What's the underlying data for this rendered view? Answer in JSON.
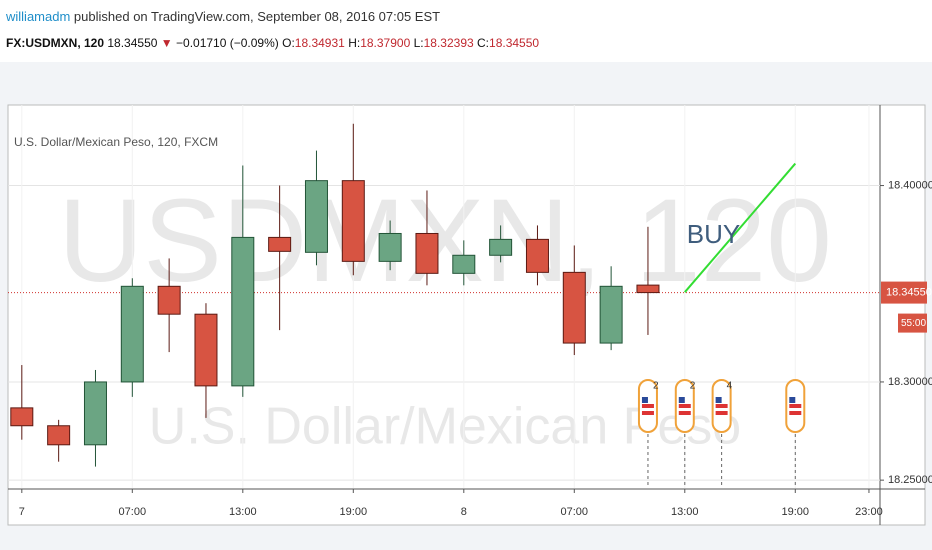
{
  "header": {
    "author": "williamadm",
    "published": "published on TradingView.com, September 08, 2016 07:05 EST",
    "symbol": "FX:USDMXN, 120",
    "last": "18.34550",
    "arrow": "▼",
    "change": "−0.01710 (−0.09%)",
    "o_label": "O:",
    "open": "18.34931",
    "h_label": "H:",
    "high": "18.37900",
    "l_label": "L:",
    "low": "18.32393",
    "c_label": "C:",
    "close": "18.34550"
  },
  "chart_data": {
    "type": "candlestick",
    "title": "U.S. Dollar/Mexican Peso, 120, FXCM",
    "watermark": [
      "USDMXN, 120",
      "U.S. Dollar/Mexican Peso"
    ],
    "x": [
      1,
      3,
      5,
      7,
      9,
      11,
      13,
      15,
      17,
      19,
      21,
      23,
      25,
      27,
      29,
      31,
      33,
      35
    ],
    "open": [
      18.2868,
      18.2777,
      18.268,
      18.3,
      18.3487,
      18.3345,
      18.298,
      18.3736,
      18.366,
      18.4025,
      18.3614,
      18.3756,
      18.3553,
      18.3645,
      18.3726,
      18.3558,
      18.3198,
      18.34931
    ],
    "high": [
      18.3086,
      18.2807,
      18.3061,
      18.3528,
      18.3629,
      18.3401,
      18.4102,
      18.4,
      18.4178,
      18.4315,
      18.3822,
      18.3975,
      18.3721,
      18.3797,
      18.3797,
      18.3695,
      18.3589,
      18.379
    ],
    "low": [
      18.2706,
      18.2594,
      18.2569,
      18.2924,
      18.3152,
      18.2817,
      18.2924,
      18.3264,
      18.3594,
      18.3543,
      18.3569,
      18.3492,
      18.3492,
      18.3609,
      18.3492,
      18.3137,
      18.3162,
      18.32393
    ],
    "close": [
      18.2777,
      18.268,
      18.3,
      18.3487,
      18.3345,
      18.298,
      18.3736,
      18.3665,
      18.4025,
      18.3614,
      18.3756,
      18.3553,
      18.3645,
      18.3726,
      18.3558,
      18.3198,
      18.3487,
      18.3455
    ],
    "up_color": "#6ba583",
    "down_color": "#d75442",
    "xlim": [
      0.25,
      47.6
    ],
    "xticks": [
      {
        "value": 1,
        "label": "7"
      },
      {
        "value": 7,
        "label": "07:00"
      },
      {
        "value": 13,
        "label": "13:00"
      },
      {
        "value": 19,
        "label": "19:00"
      },
      {
        "value": 25,
        "label": "8"
      },
      {
        "value": 31,
        "label": "07:00"
      },
      {
        "value": 37,
        "label": "13:00"
      },
      {
        "value": 43,
        "label": "19:00"
      },
      {
        "value": 47,
        "label": "23:00"
      }
    ],
    "ylim": [
      18.246,
      18.44
    ],
    "yticks": [
      {
        "value": 18.4,
        "label": "18.40000"
      },
      {
        "value": 18.3,
        "label": "18.30000"
      },
      {
        "value": 18.25,
        "label": "18.25000"
      }
    ],
    "grid": true,
    "last_price": {
      "value": 18.3455,
      "label": "18.34550"
    },
    "countdown": "55:00",
    "annotation": {
      "text": "BUY",
      "line_x": [
        37,
        43
      ],
      "line_y": [
        18.3457,
        18.4112
      ],
      "color": "#33dd33"
    },
    "events": {
      "x": [
        35,
        37,
        39,
        43
      ],
      "counts": [
        2,
        2,
        4,
        null
      ]
    }
  }
}
